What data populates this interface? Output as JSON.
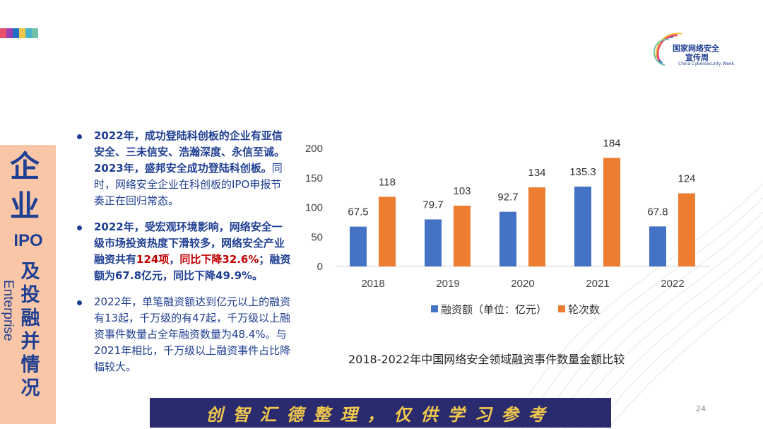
{
  "header": {
    "logo_line1": "国家网络安全",
    "logo_line2": "宣传周",
    "logo_line3": "China Cybersecurity Week",
    "strip_colors": [
      "#e94f6a",
      "#9a3fb0",
      "#1f6fc5",
      "#f0c64a",
      "#47b2c9",
      "#71c2a4"
    ]
  },
  "sidebar": {
    "title_1": "企",
    "title_2": "业",
    "title_ipo": "IPO",
    "title_chars": [
      "及",
      "投",
      "融",
      "并",
      "情",
      "况"
    ],
    "english": "Enterprise"
  },
  "bullets": [
    {
      "text": "2022年，成功登陆科创板的企业有亚信安全、三未信安、浩瀚深度、永信至诚。2023年，盛邦安全成功登陆科创板。",
      "text_normal": "同时，网络安全企业在科创板的IPO申报节奏正在回归常态。"
    },
    {
      "part1": "2022年，受宏观环境影响，网络安全一级市场投资热度下滑较多，网络安全产业融资共有",
      "red1": "124项",
      "part2": "，",
      "red2": "同比下降32.6%",
      "part3": "；融资额为67.8亿元，同比下降49.9%。"
    },
    {
      "text": "2022年，单笔融资额达到亿元以上的融资有13起，千万级的有47起，千万级以上融资事件数量占全年融资数量为48.4%。与2021年相比，千万级以上融资事件占比降幅较大。"
    }
  ],
  "chart_data": {
    "type": "bar",
    "categories": [
      "2018",
      "2019",
      "2020",
      "2021",
      "2022"
    ],
    "series": [
      {
        "name": "融资额（单位：亿元）",
        "values": [
          67.5,
          79.7,
          92.7,
          135.3,
          67.8
        ],
        "color": "#4472c4"
      },
      {
        "name": "轮次数",
        "values": [
          118,
          103,
          134,
          184,
          124
        ],
        "color": "#ed7d31"
      }
    ],
    "y_ticks": [
      "0",
      "50",
      "100",
      "150",
      "200"
    ],
    "ylim": [
      0,
      200
    ],
    "legend_position": "bottom",
    "grid": false
  },
  "caption": "2018-2022年中国网络安全领域融资事件数量金额比较",
  "footer": "创智汇德整理，仅供学习参考",
  "page_number": "24"
}
